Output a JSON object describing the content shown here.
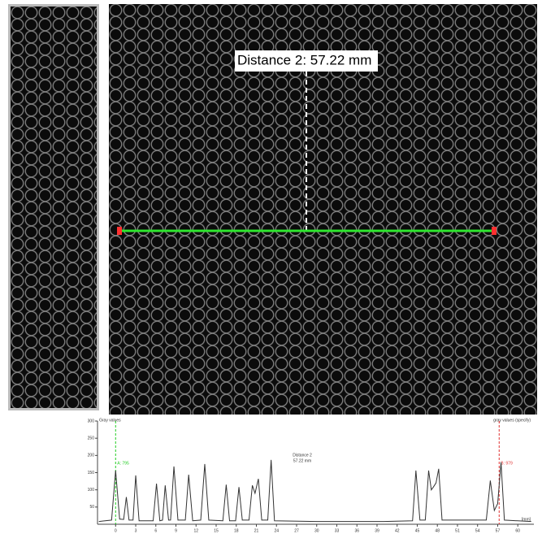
{
  "measurement": {
    "label": "Distance 2: 57.22 mm"
  },
  "chart_data": {
    "type": "line",
    "y_label": "Gray values",
    "y2_label": "gray values (specify)",
    "x_unit": "[mm]",
    "annotation": [
      "Distance 2",
      "57.22 mm"
    ],
    "x": [
      -2.5,
      -0.6,
      0,
      0.6,
      1.2,
      1.6,
      2.0,
      2.6,
      3.0,
      3.5,
      5.6,
      6.1,
      6.6,
      7.0,
      7.4,
      7.9,
      8.2,
      8.7,
      9.3,
      10.4,
      10.9,
      11.5,
      12.7,
      13.3,
      13.9,
      16.0,
      16.5,
      17.0,
      17.9,
      18.4,
      18.9,
      19.9,
      20.4,
      20.8,
      21.3,
      21.8,
      22.7,
      23.2,
      23.7,
      30,
      40,
      44.3,
      44.8,
      45.4,
      46.2,
      46.7,
      47.1,
      47.4,
      47.8,
      48.2,
      48.7,
      55.3,
      55.9,
      56.5,
      57.0,
      57.5,
      58.0,
      62.0
    ],
    "series": [
      {
        "color": "#333333",
        "values": [
          8,
          12,
          156,
          15,
          14,
          79,
          12,
          12,
          142,
          10,
          10,
          118,
          10,
          12,
          113,
          12,
          12,
          168,
          12,
          12,
          144,
          10,
          12,
          175,
          12,
          10,
          115,
          10,
          10,
          108,
          12,
          12,
          113,
          90,
          132,
          12,
          12,
          187,
          10,
          8,
          8,
          10,
          156,
          12,
          12,
          156,
          100,
          108,
          120,
          161,
          12,
          12,
          127,
          40,
          60,
          180,
          12,
          8
        ]
      }
    ],
    "markers": [
      {
        "label": "A: 795",
        "x": 0,
        "color": "#22cc22"
      },
      {
        "label": "B: 979",
        "x": 57.22,
        "color": "#e03030"
      }
    ],
    "xlim": [
      -2.7,
      62.4
    ],
    "ylim": [
      0,
      300
    ],
    "xticks": [
      0,
      3,
      6,
      9,
      12,
      15,
      18,
      21,
      24,
      27,
      30,
      33,
      36,
      39,
      42,
      45,
      48,
      51,
      54,
      57,
      60
    ],
    "yticks": [
      50,
      100,
      150,
      200,
      250,
      300
    ]
  }
}
